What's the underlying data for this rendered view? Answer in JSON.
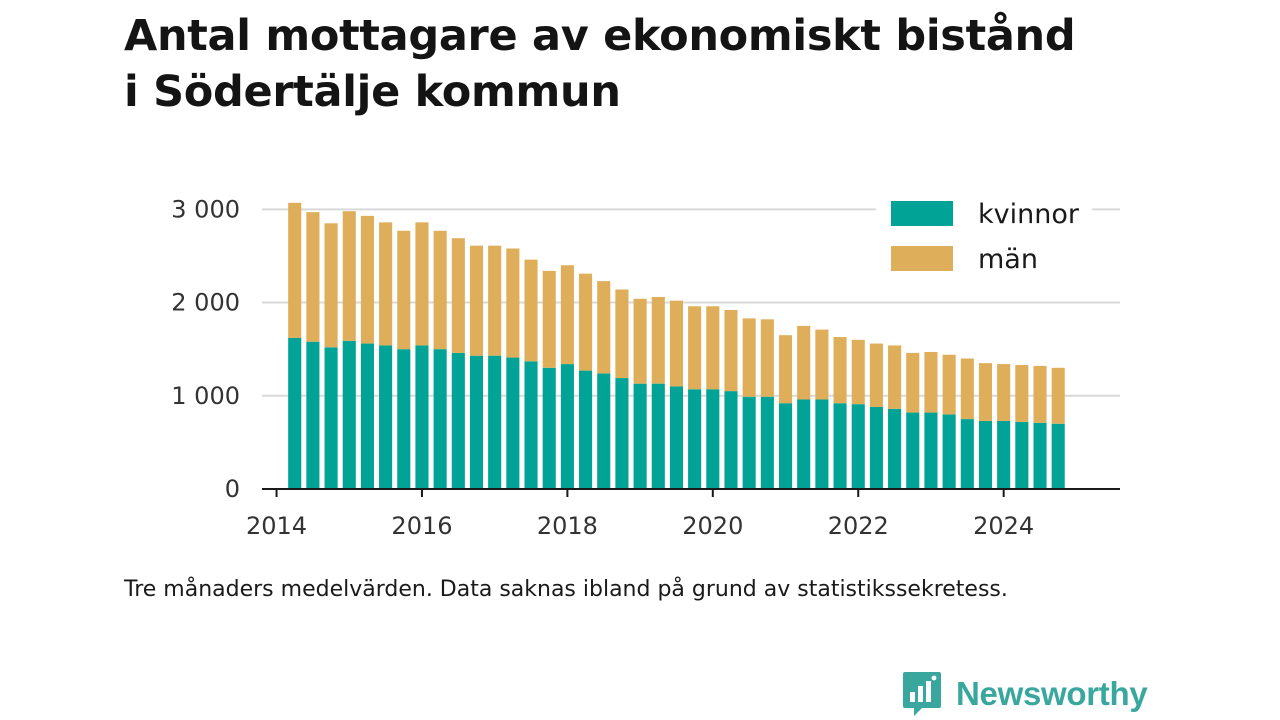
{
  "title_line1": "Antal mottagare av ekonomiskt bistånd",
  "title_line2": "i Södertälje kommun",
  "note": "Tre månaders medelvärden. Data saknas ibland på grund av statistikssekretess.",
  "brand": "Newsworthy",
  "brand_icon": "bar-chart-speech-bubble-icon",
  "colors": {
    "kvinnor": "#00a396",
    "man": "#deae5a",
    "brand": "#3aa79e"
  },
  "chart_data": {
    "type": "bar",
    "stacked": true,
    "x_axis": {
      "range": [
        2013.8,
        2025.6
      ],
      "ticks": [
        2014,
        2016,
        2018,
        2020,
        2022,
        2024
      ]
    },
    "y_axis": {
      "range": [
        0,
        3100
      ],
      "ticks": [
        0,
        1000,
        2000,
        3000
      ],
      "tick_labels": [
        "0",
        "1 000",
        "2 000",
        "3 000"
      ]
    },
    "grid": true,
    "legend": {
      "position": "top-right"
    },
    "x": [
      2014.25,
      2014.5,
      2014.75,
      2015.0,
      2015.25,
      2015.5,
      2015.75,
      2016.0,
      2016.25,
      2016.5,
      2016.75,
      2017.0,
      2017.25,
      2017.5,
      2017.75,
      2018.0,
      2018.25,
      2018.5,
      2018.75,
      2019.0,
      2019.25,
      2019.5,
      2019.75,
      2020.0,
      2020.25,
      2020.5,
      2020.75,
      2021.0,
      2021.25,
      2021.5,
      2021.75,
      2022.0,
      2022.25,
      2022.5,
      2022.75,
      2023.0,
      2023.25,
      2023.5,
      2023.75,
      2024.0,
      2024.25,
      2024.5,
      2024.75
    ],
    "series": [
      {
        "name": "kvinnor",
        "values": [
          1620,
          1580,
          1520,
          1590,
          1560,
          1540,
          1500,
          1540,
          1500,
          1460,
          1430,
          1430,
          1410,
          1370,
          1300,
          1340,
          1270,
          1240,
          1190,
          1130,
          1130,
          1100,
          1070,
          1070,
          1050,
          990,
          990,
          920,
          960,
          960,
          920,
          910,
          880,
          860,
          820,
          820,
          800,
          750,
          730,
          730,
          720,
          710,
          700
        ]
      },
      {
        "name": "män",
        "values": [
          1450,
          1390,
          1330,
          1390,
          1370,
          1320,
          1270,
          1320,
          1270,
          1230,
          1180,
          1180,
          1170,
          1090,
          1040,
          1060,
          1040,
          990,
          950,
          910,
          930,
          920,
          890,
          890,
          870,
          840,
          830,
          730,
          790,
          750,
          710,
          690,
          680,
          680,
          640,
          650,
          640,
          650,
          620,
          610,
          610,
          610,
          600
        ]
      }
    ]
  }
}
